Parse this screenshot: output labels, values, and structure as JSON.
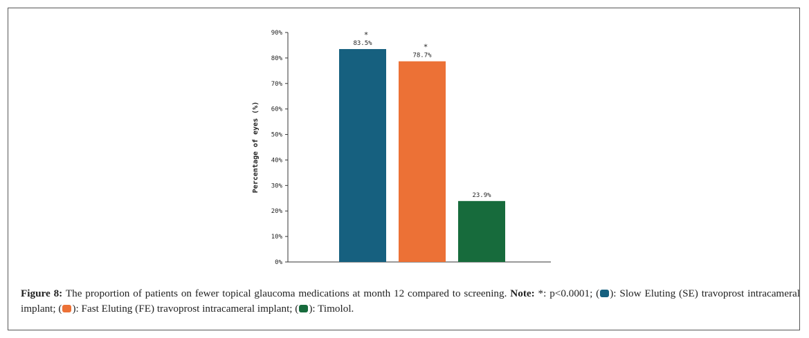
{
  "chart_data": {
    "type": "bar",
    "categories": [
      "Slow Eluting (SE) travoprost intracameral implant",
      "Fast Eluting (FE) travoprost intracameral implant",
      "Timolol"
    ],
    "values": [
      83.5,
      78.7,
      23.9
    ],
    "data_labels": [
      "83.5%",
      "78.7%",
      "23.9%"
    ],
    "significance": [
      "*",
      "*",
      ""
    ],
    "colors": [
      "#16607f",
      "#ec7136",
      "#176b3c"
    ],
    "ylabel": "Percentage of eyes (%)",
    "xlabel": "",
    "ylim": [
      0,
      90
    ],
    "yticks": [
      "0%",
      "10%",
      "20%",
      "30%",
      "40%",
      "50%",
      "60%",
      "70%",
      "80%",
      "90%"
    ],
    "grid": false,
    "legend": "in caption"
  },
  "caption": {
    "figure_label": "Figure 8:",
    "text": " The proportion of patients on fewer topical glaucoma medications at month 12 compared to screening. ",
    "note_label": "Note:",
    "note_text": " *: p<0.0001; (",
    "se_text": "): Slow Eluting (SE) travoprost intracameral implant; (",
    "fe_text": "): Fast Eluting (FE) travoprost intracameral implant; (",
    "timolol_text": "): Timolol."
  }
}
